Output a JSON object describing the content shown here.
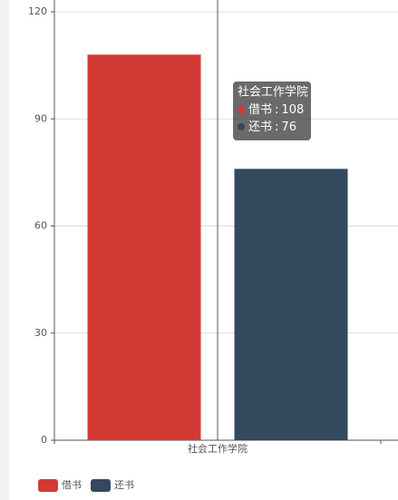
{
  "chart_data": {
    "type": "bar",
    "categories": [
      "社会工作学院"
    ],
    "series": [
      {
        "name": "借书",
        "color": "#d33a35",
        "values": [
          108
        ]
      },
      {
        "name": "还书",
        "color": "#34495e",
        "values": [
          76
        ]
      }
    ],
    "ylim": [
      0,
      120
    ],
    "yticks": [
      0,
      30,
      60,
      90,
      120
    ],
    "grid": true,
    "legend": "bottom-left",
    "tooltip": {
      "category": 0,
      "separator": ":"
    }
  }
}
